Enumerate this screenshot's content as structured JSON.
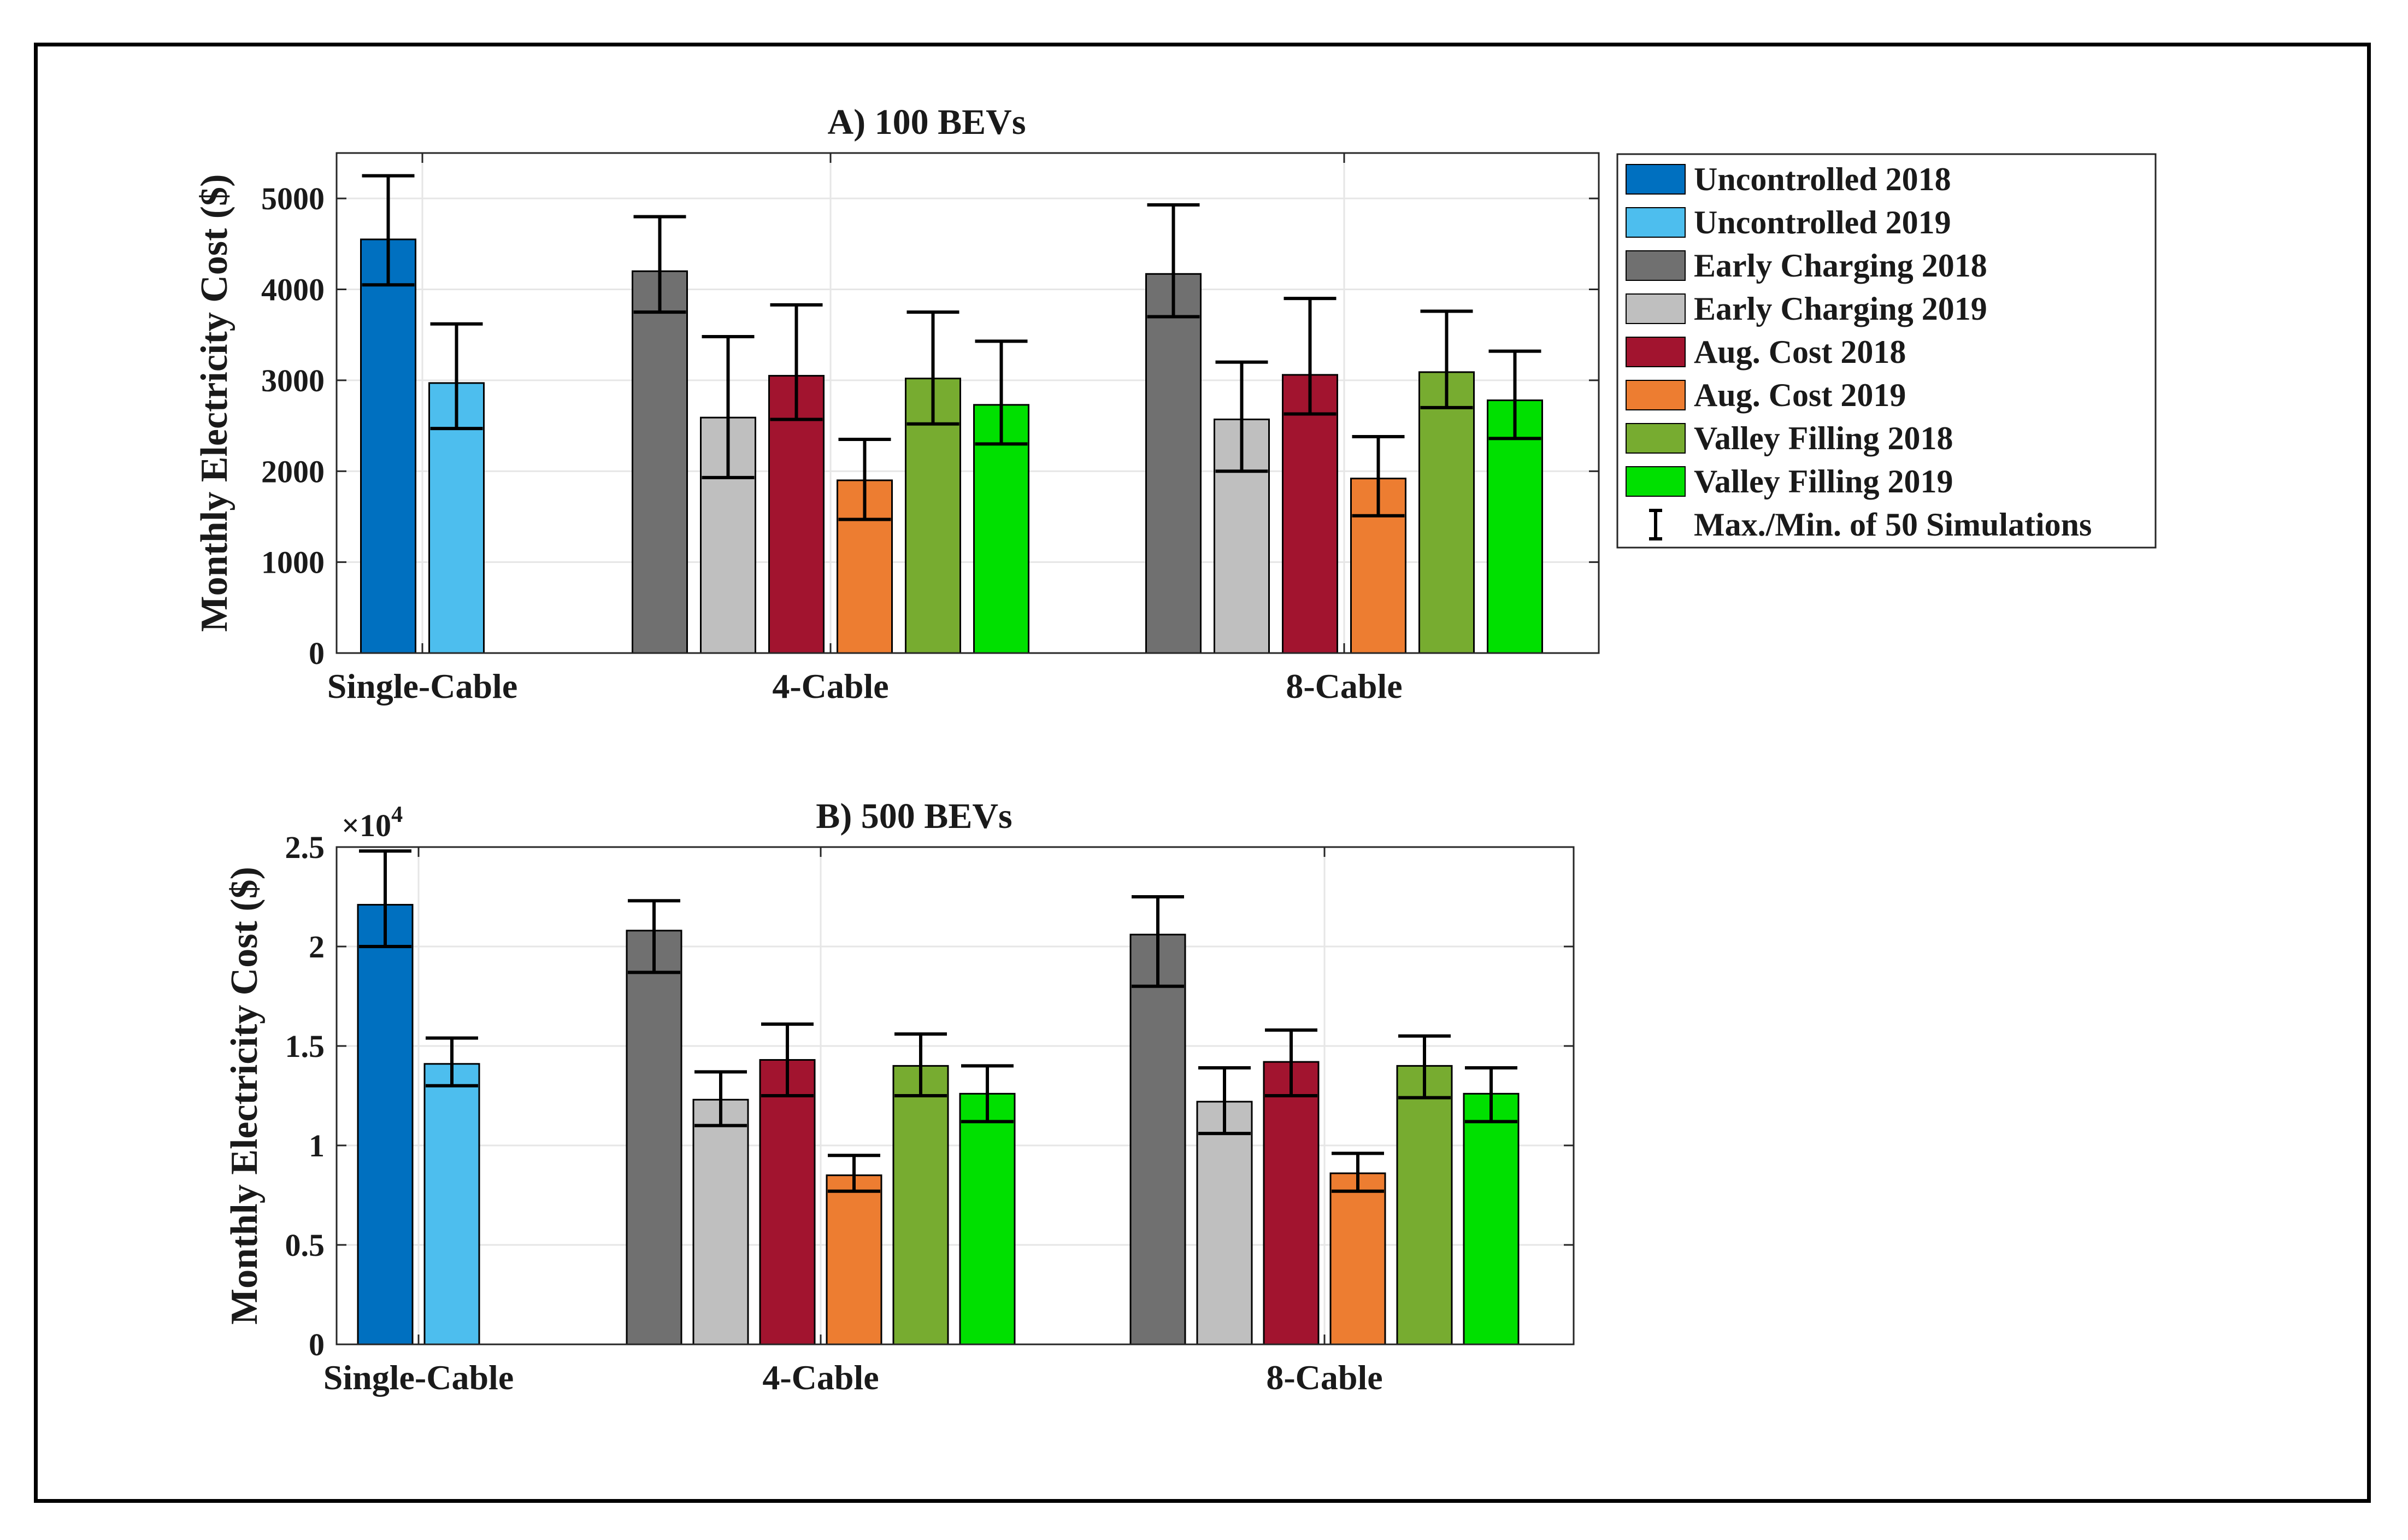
{
  "legend": {
    "items": [
      {
        "label": "Uncontrolled 2018",
        "color": "#0070c0"
      },
      {
        "label": "Uncontrolled 2019",
        "color": "#4dbeee"
      },
      {
        "label": "Early Charging 2018",
        "color": "#707070"
      },
      {
        "label": "Early Charging 2019",
        "color": "#bfbfbf"
      },
      {
        "label": "Aug. Cost 2018",
        "color": "#a2142f"
      },
      {
        "label": "Aug. Cost 2019",
        "color": "#ed7d31"
      },
      {
        "label": "Valley Filling 2018",
        "color": "#77ac30"
      },
      {
        "label": "Valley Filling 2019",
        "color": "#00e000"
      }
    ],
    "errorbar_label": "Max./Min. of 50 Simulations"
  },
  "chart_data": [
    {
      "type": "bar",
      "title": "A) 100 BEVs",
      "xlabel": "",
      "ylabel": "Monthly Electricity Cost ($)",
      "ylim": [
        0,
        5500
      ],
      "yticks": [
        0,
        1000,
        2000,
        3000,
        4000,
        5000
      ],
      "ytick_labels": [
        "0",
        "1000",
        "2000",
        "3000",
        "4000",
        "5000"
      ],
      "exponent_label": "",
      "grid": true,
      "categories": [
        "Single-Cable",
        "4-Cable",
        "8-Cable"
      ],
      "series": [
        {
          "name": "Uncontrolled 2018",
          "values": [
            4550,
            null,
            null
          ],
          "err_min": [
            4050,
            null,
            null
          ],
          "err_max": [
            5250,
            null,
            null
          ]
        },
        {
          "name": "Uncontrolled 2019",
          "values": [
            2970,
            null,
            null
          ],
          "err_min": [
            2470,
            null,
            null
          ],
          "err_max": [
            3620,
            null,
            null
          ]
        },
        {
          "name": "Early Charging 2018",
          "values": [
            null,
            4200,
            4170
          ],
          "err_min": [
            null,
            3750,
            3700
          ],
          "err_max": [
            null,
            4800,
            4930
          ]
        },
        {
          "name": "Early Charging 2019",
          "values": [
            null,
            2590,
            2570
          ],
          "err_min": [
            null,
            1930,
            2000
          ],
          "err_max": [
            null,
            3480,
            3200
          ]
        },
        {
          "name": "Aug. Cost 2018",
          "values": [
            null,
            3050,
            3060
          ],
          "err_min": [
            null,
            2570,
            2630
          ],
          "err_max": [
            null,
            3830,
            3900
          ]
        },
        {
          "name": "Aug. Cost 2019",
          "values": [
            null,
            1900,
            1920
          ],
          "err_min": [
            null,
            1470,
            1510
          ],
          "err_max": [
            null,
            2350,
            2380
          ]
        },
        {
          "name": "Valley Filling 2018",
          "values": [
            null,
            3020,
            3090
          ],
          "err_min": [
            null,
            2520,
            2700
          ],
          "err_max": [
            null,
            3750,
            3760
          ]
        },
        {
          "name": "Valley Filling 2019",
          "values": [
            null,
            2730,
            2780
          ],
          "err_min": [
            null,
            2300,
            2360
          ],
          "err_max": [
            null,
            3430,
            3320
          ]
        }
      ]
    },
    {
      "type": "bar",
      "title": "B) 500 BEVs",
      "xlabel": "",
      "ylabel": "Monthly Electricity Cost ($)",
      "ylim": [
        0,
        25000
      ],
      "yticks": [
        0,
        5000,
        10000,
        15000,
        20000,
        25000
      ],
      "ytick_labels": [
        "0",
        "0.5",
        "1",
        "1.5",
        "2",
        "2.5"
      ],
      "exponent_label": "×10",
      "exponent_power": "4",
      "grid": true,
      "categories": [
        "Single-Cable",
        "4-Cable",
        "8-Cable"
      ],
      "series": [
        {
          "name": "Uncontrolled 2018",
          "values": [
            22100,
            null,
            null
          ],
          "err_min": [
            20000,
            null,
            null
          ],
          "err_max": [
            24800,
            null,
            null
          ]
        },
        {
          "name": "Uncontrolled 2019",
          "values": [
            14100,
            null,
            null
          ],
          "err_min": [
            13000,
            null,
            null
          ],
          "err_max": [
            15400,
            null,
            null
          ]
        },
        {
          "name": "Early Charging 2018",
          "values": [
            null,
            20800,
            20600
          ],
          "err_min": [
            null,
            18700,
            18000
          ],
          "err_max": [
            null,
            22300,
            22500
          ]
        },
        {
          "name": "Early Charging 2019",
          "values": [
            null,
            12300,
            12200
          ],
          "err_min": [
            null,
            11000,
            10600
          ],
          "err_max": [
            null,
            13700,
            13900
          ]
        },
        {
          "name": "Aug. Cost 2018",
          "values": [
            null,
            14300,
            14200
          ],
          "err_min": [
            null,
            12500,
            12500
          ],
          "err_max": [
            null,
            16100,
            15800
          ]
        },
        {
          "name": "Aug. Cost 2019",
          "values": [
            null,
            8500,
            8600
          ],
          "err_min": [
            null,
            7700,
            7700
          ],
          "err_max": [
            null,
            9500,
            9600
          ]
        },
        {
          "name": "Valley Filling 2018",
          "values": [
            null,
            14000,
            14000
          ],
          "err_min": [
            null,
            12500,
            12400
          ],
          "err_max": [
            null,
            15600,
            15500
          ]
        },
        {
          "name": "Valley Filling 2019",
          "values": [
            null,
            12600,
            12600
          ],
          "err_min": [
            null,
            11200,
            11200
          ],
          "err_max": [
            null,
            14000,
            13900
          ]
        }
      ]
    }
  ]
}
